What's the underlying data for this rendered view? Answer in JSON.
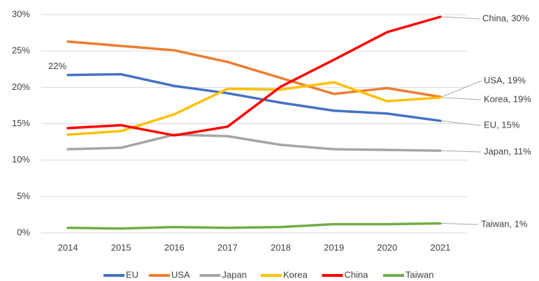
{
  "chart_data": {
    "type": "line",
    "categories": [
      "2014",
      "2015",
      "2016",
      "2017",
      "2018",
      "2019",
      "2020",
      "2021"
    ],
    "ylim": [
      0,
      30
    ],
    "yticks": [
      {
        "value": 0,
        "label": "0%"
      },
      {
        "value": 5,
        "label": "5%"
      },
      {
        "value": 10,
        "label": "10%"
      },
      {
        "value": 15,
        "label": "15%"
      },
      {
        "value": 20,
        "label": "20%"
      },
      {
        "value": 25,
        "label": "25%"
      },
      {
        "value": 30,
        "label": "30%"
      }
    ],
    "grid": true,
    "legend": "bottom",
    "series": [
      {
        "name": "EU",
        "color": "#4472c4",
        "values": [
          21.7,
          21.8,
          20.2,
          19.2,
          17.9,
          16.8,
          16.4,
          15.4
        ],
        "value_labels": [
          "22%",
          null,
          null,
          null,
          null,
          null,
          null,
          null
        ],
        "end_label": "EU, 15%"
      },
      {
        "name": "USA",
        "color": "#ed7d31",
        "values": [
          26.3,
          25.7,
          25.1,
          23.5,
          21.3,
          19.1,
          19.9,
          18.7
        ],
        "end_label": "USA, 19%"
      },
      {
        "name": "Japan",
        "color": "#a5a5a5",
        "values": [
          11.5,
          11.7,
          13.5,
          13.3,
          12.1,
          11.5,
          11.4,
          11.3
        ],
        "end_label": "Japan, 11%"
      },
      {
        "name": "Korea",
        "color": "#ffc000",
        "values": [
          13.5,
          14.0,
          16.3,
          19.8,
          19.7,
          20.7,
          18.1,
          18.6
        ],
        "end_label": "Korea, 19%"
      },
      {
        "name": "China",
        "color": "#ff0000",
        "values": [
          14.4,
          14.8,
          13.4,
          14.6,
          20.1,
          23.8,
          27.6,
          29.7
        ],
        "end_label": "China, 30%"
      },
      {
        "name": "Taiwan",
        "color": "#70ad47",
        "values": [
          0.7,
          0.6,
          0.8,
          0.7,
          0.8,
          1.2,
          1.2,
          1.3
        ],
        "end_label": "Taiwan, 1%"
      }
    ]
  }
}
